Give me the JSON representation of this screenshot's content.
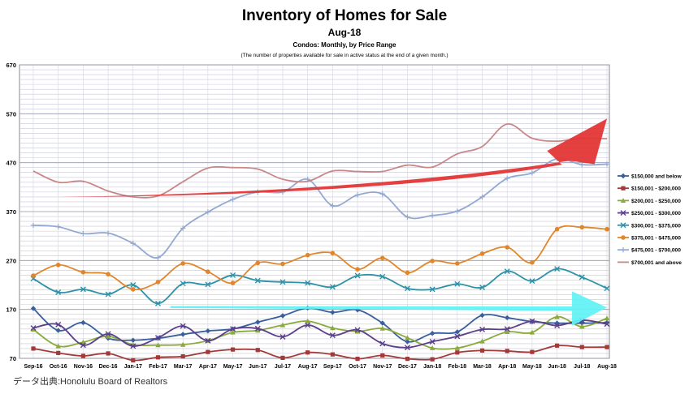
{
  "chart_data": {
    "type": "line",
    "title": "Inventory of Homes for Sale",
    "subtitle": "Aug-18",
    "subtitle2": "Condos: Monthly, by Price Range",
    "note": "(The number of properties available for sale in active status at the end of a given month.)",
    "xlabel": "",
    "ylabel": "",
    "ylim": [
      70,
      670
    ],
    "yticks": [
      70,
      170,
      270,
      370,
      470,
      570,
      670
    ],
    "grid": true,
    "legend_position": "right",
    "x": [
      "Sep-16",
      "Oct-16",
      "Nov-16",
      "Dec-16",
      "Jan-17",
      "Feb-17",
      "Mar-17",
      "Apr-17",
      "May-17",
      "Jun-17",
      "Jul-17",
      "Aug-17",
      "Sep-17",
      "Oct-17",
      "Nov-17",
      "Dec-17",
      "Jan-18",
      "Feb-18",
      "Mar-18",
      "Apr-18",
      "May-18",
      "Jun-18",
      "Jul-18",
      "Aug-18"
    ],
    "series": [
      {
        "name": "$150,000 and below",
        "color": "#3a5f9e",
        "marker": "diamond",
        "values": [
          172,
          127,
          143,
          111,
          107,
          111,
          119,
          126,
          130,
          144,
          157,
          173,
          164,
          169,
          142,
          104,
          121,
          124,
          158,
          153,
          145,
          142,
          142,
          143
        ]
      },
      {
        "name": "$150,001 - $200,000",
        "color": "#a33a3a",
        "marker": "square",
        "values": [
          90,
          81,
          75,
          80,
          66,
          72,
          74,
          83,
          88,
          87,
          71,
          82,
          78,
          69,
          76,
          69,
          68,
          82,
          86,
          85,
          83,
          96,
          93,
          93
        ]
      },
      {
        "name": "$200,001 - $250,000",
        "color": "#8aaa3c",
        "marker": "triangle",
        "values": [
          129,
          95,
          103,
          115,
          98,
          97,
          98,
          106,
          123,
          127,
          138,
          146,
          132,
          125,
          131,
          112,
          91,
          91,
          105,
          124,
          123,
          155,
          135,
          152
        ]
      },
      {
        "name": "$250,001 - $300,000",
        "color": "#5b3f8a",
        "marker": "x",
        "values": [
          132,
          139,
          97,
          120,
          95,
          112,
          136,
          106,
          130,
          131,
          114,
          138,
          117,
          128,
          100,
          92,
          104,
          115,
          129,
          130,
          146,
          137,
          148,
          140
        ]
      },
      {
        "name": "$300,001 - $375,000",
        "color": "#2e92a8",
        "marker": "x",
        "values": [
          233,
          205,
          211,
          201,
          220,
          182,
          223,
          221,
          240,
          229,
          226,
          224,
          216,
          239,
          237,
          213,
          211,
          222,
          215,
          248,
          228,
          253,
          236,
          213
        ]
      },
      {
        "name": "$375,001 - $475,000",
        "color": "#e0862c",
        "marker": "circle",
        "values": [
          239,
          261,
          246,
          242,
          211,
          226,
          264,
          247,
          224,
          265,
          263,
          281,
          285,
          252,
          275,
          245,
          269,
          264,
          284,
          297,
          266,
          334,
          338,
          334
        ]
      },
      {
        "name": "$475,001 - $700,000",
        "color": "#93a9d1",
        "marker": "plus",
        "values": [
          342,
          339,
          325,
          326,
          305,
          276,
          336,
          369,
          395,
          410,
          410,
          436,
          382,
          404,
          406,
          359,
          362,
          371,
          400,
          438,
          449,
          478,
          466,
          467
        ]
      },
      {
        "name": "$700,001 and above",
        "color": "#c98787",
        "marker": "none",
        "values": [
          453,
          430,
          432,
          412,
          400,
          402,
          431,
          459,
          460,
          457,
          436,
          432,
          453,
          452,
          452,
          465,
          461,
          488,
          503,
          549,
          520,
          514,
          520,
          519
        ]
      }
    ]
  },
  "source": "データ出典:Honolulu Board of Realtors"
}
